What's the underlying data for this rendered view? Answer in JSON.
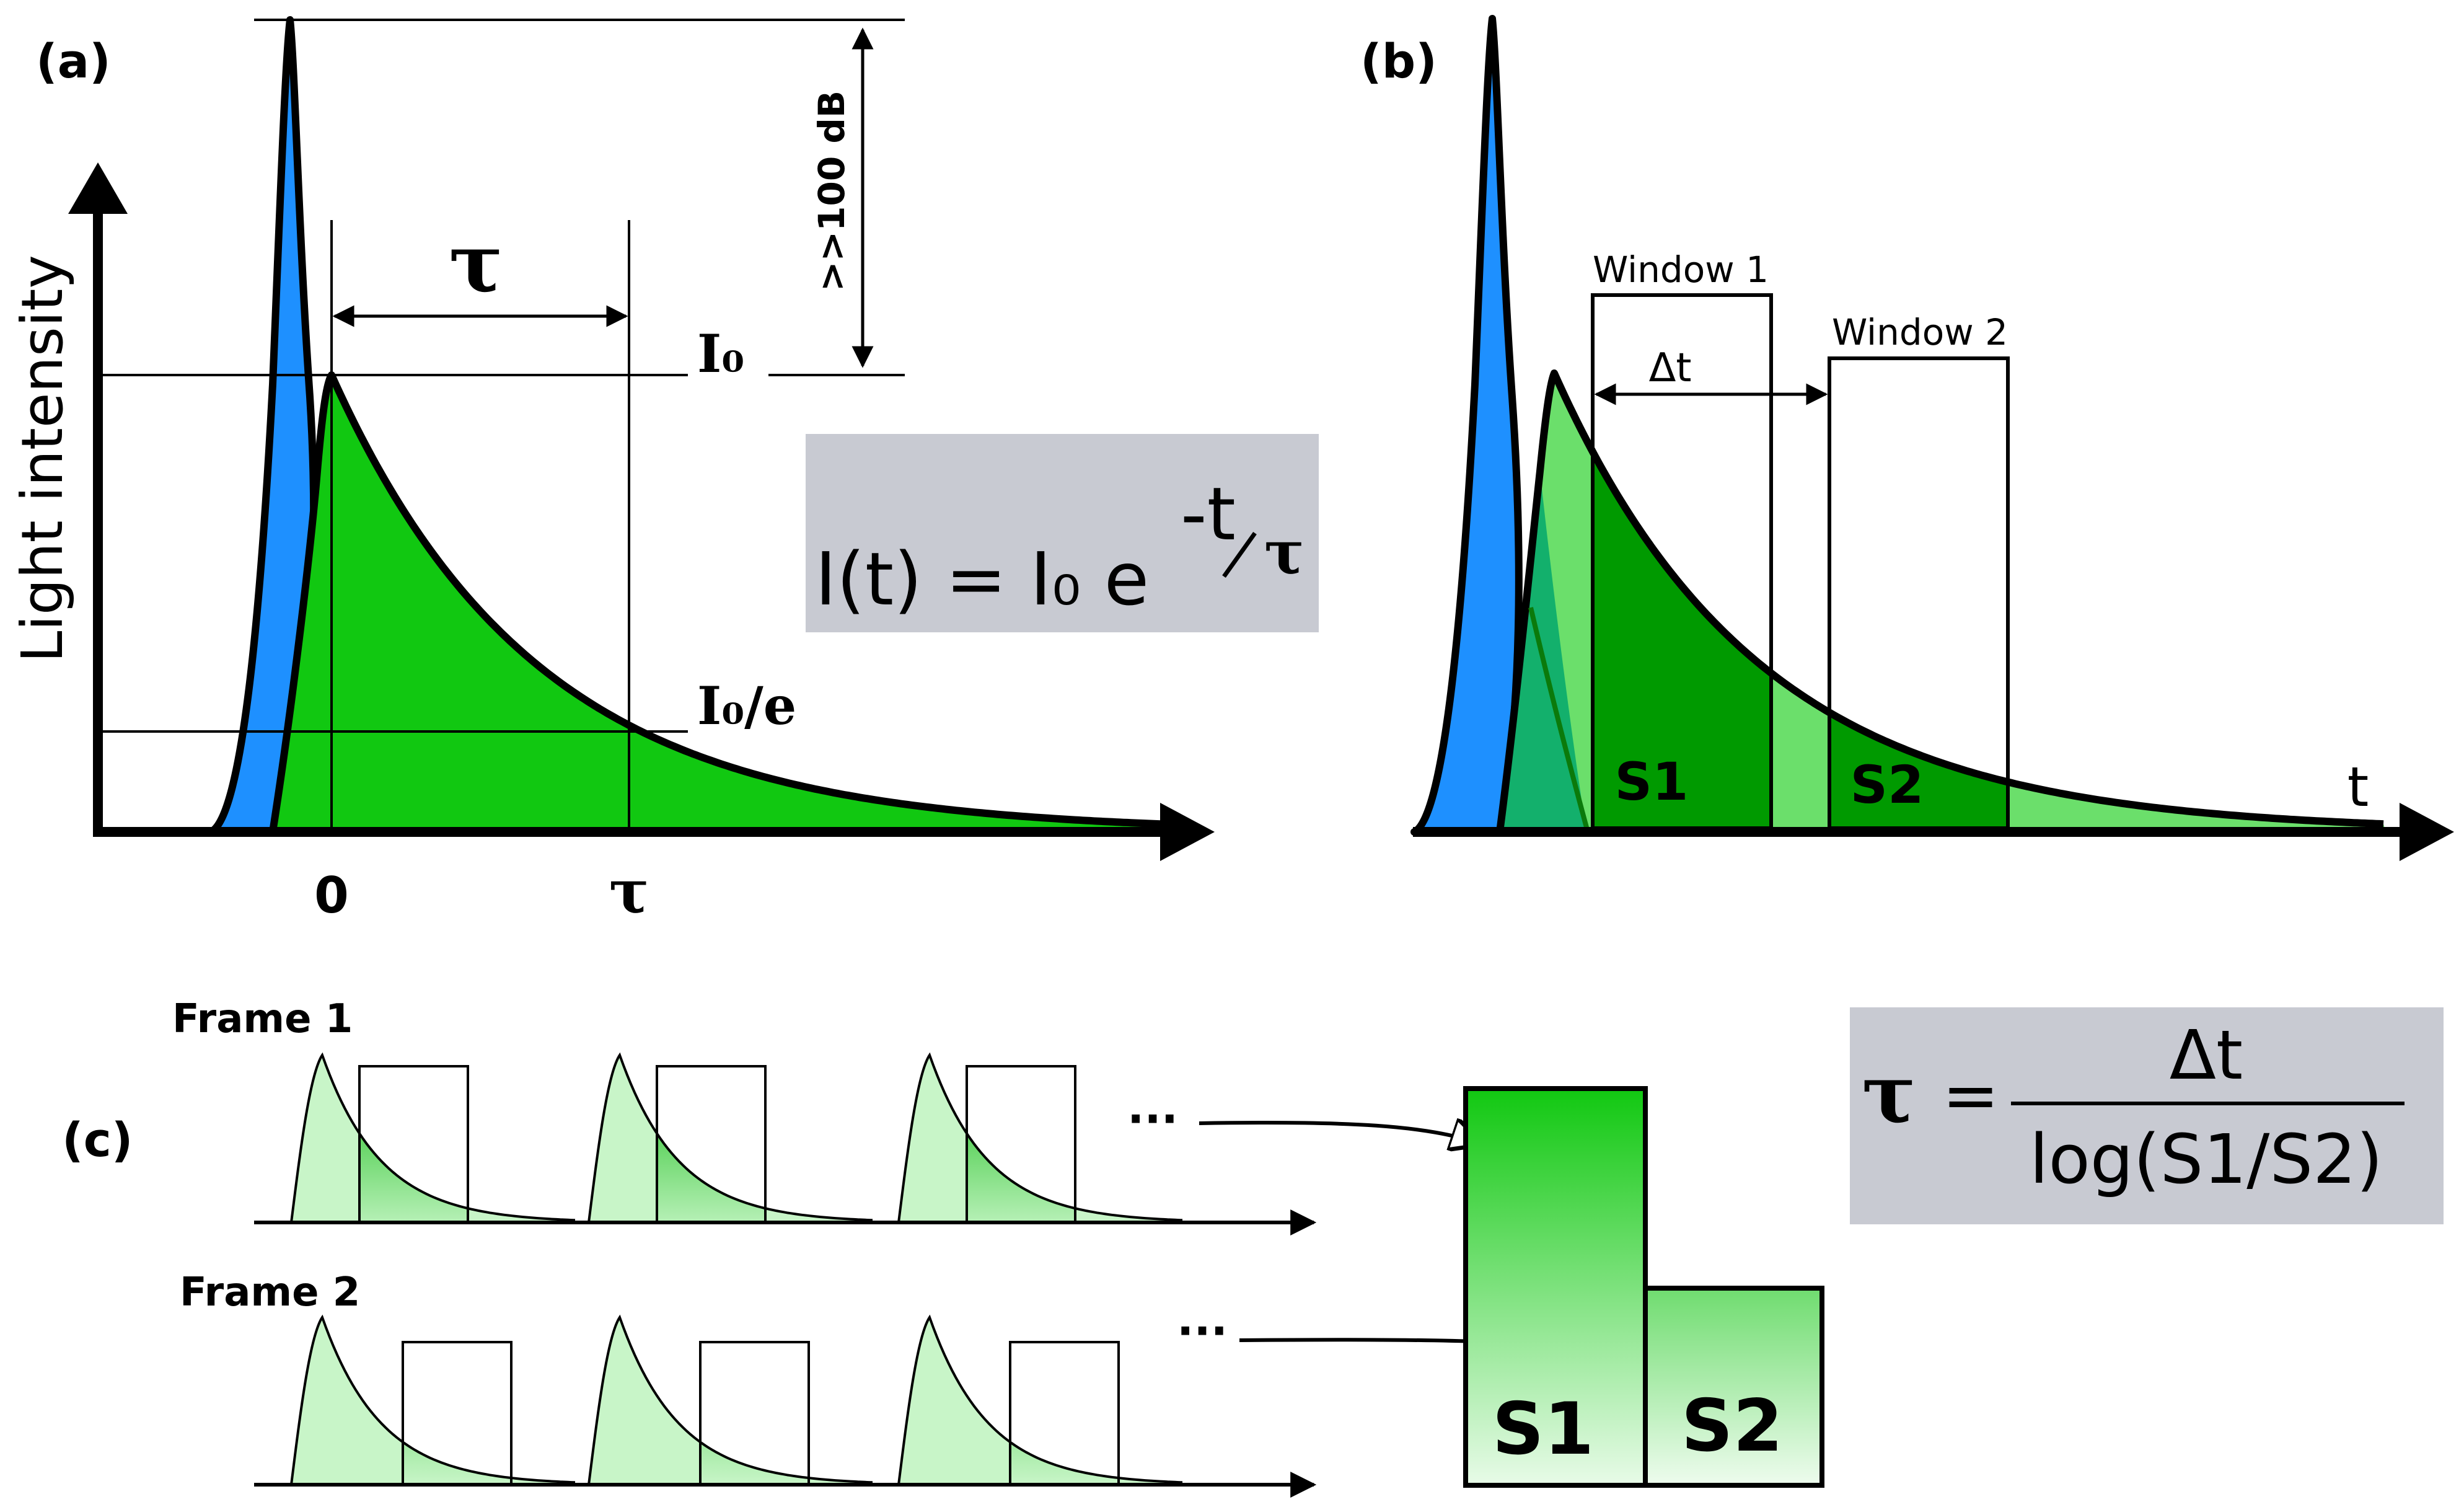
{
  "panel_a": {
    "label": "(a)",
    "y_axis_label": "Light intensity",
    "tau_symbol": "τ",
    "dynamic_range": ">>100 dB",
    "level_i0": "I₀",
    "level_i0_over_e": "I₀/e",
    "tick_zero": "0",
    "tick_tau": "τ",
    "formula": {
      "lhs": "I(t) = I₀ e",
      "exponent_num": "-t",
      "exponent_den": "τ"
    }
  },
  "panel_b": {
    "label": "(b)",
    "window1": "Window 1",
    "window2": "Window 2",
    "delta_t": "Δt",
    "s1": "S1",
    "s2": "S2",
    "x_axis_label": "t"
  },
  "panel_c": {
    "label": "(c)",
    "frame1": "Frame 1",
    "frame2": "Frame 2",
    "ellipsis": "···",
    "bar_s1": "S1",
    "bar_s2": "S2",
    "formula": {
      "tau": "τ",
      "equals": "=",
      "numerator": "Δt",
      "denominator": "log(S1/S2)"
    }
  },
  "colors": {
    "blue": "#1e90ff",
    "green": "#11c811",
    "dark_green": "#009a00",
    "light_green": "#6bdf6b",
    "teal": "#13b06c",
    "pale_green": "#c8f5c8",
    "formula_bg": "#c8cad2"
  }
}
